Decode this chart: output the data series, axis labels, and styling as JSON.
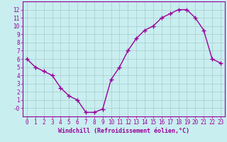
{
  "x": [
    0,
    1,
    2,
    3,
    4,
    5,
    6,
    7,
    8,
    9,
    10,
    11,
    12,
    13,
    14,
    15,
    16,
    17,
    18,
    19,
    20,
    21,
    22,
    23
  ],
  "y": [
    6.0,
    5.0,
    4.5,
    4.0,
    2.5,
    1.5,
    1.0,
    -0.5,
    -0.5,
    -0.1,
    3.5,
    5.0,
    7.0,
    8.5,
    9.5,
    10.0,
    11.0,
    11.5,
    12.0,
    12.0,
    11.0,
    9.5,
    6.0,
    5.5
  ],
  "line_color": "#990099",
  "marker": "+",
  "marker_size": 4,
  "bg_color": "#c8eef0",
  "grid_color": "#aacccc",
  "xlabel": "Windchill (Refroidissement éolien,°C)",
  "ylim": [
    -1,
    13
  ],
  "xlim": [
    -0.5,
    23.5
  ],
  "yticks": [
    0,
    1,
    2,
    3,
    4,
    5,
    6,
    7,
    8,
    9,
    10,
    11,
    12
  ],
  "xticks": [
    0,
    1,
    2,
    3,
    4,
    5,
    6,
    7,
    8,
    9,
    10,
    11,
    12,
    13,
    14,
    15,
    16,
    17,
    18,
    19,
    20,
    21,
    22,
    23
  ],
  "font_color": "#990099",
  "tick_font_size": 5.5,
  "label_font_size": 6.0,
  "linewidth": 1.0,
  "markeredgewidth": 1.0
}
